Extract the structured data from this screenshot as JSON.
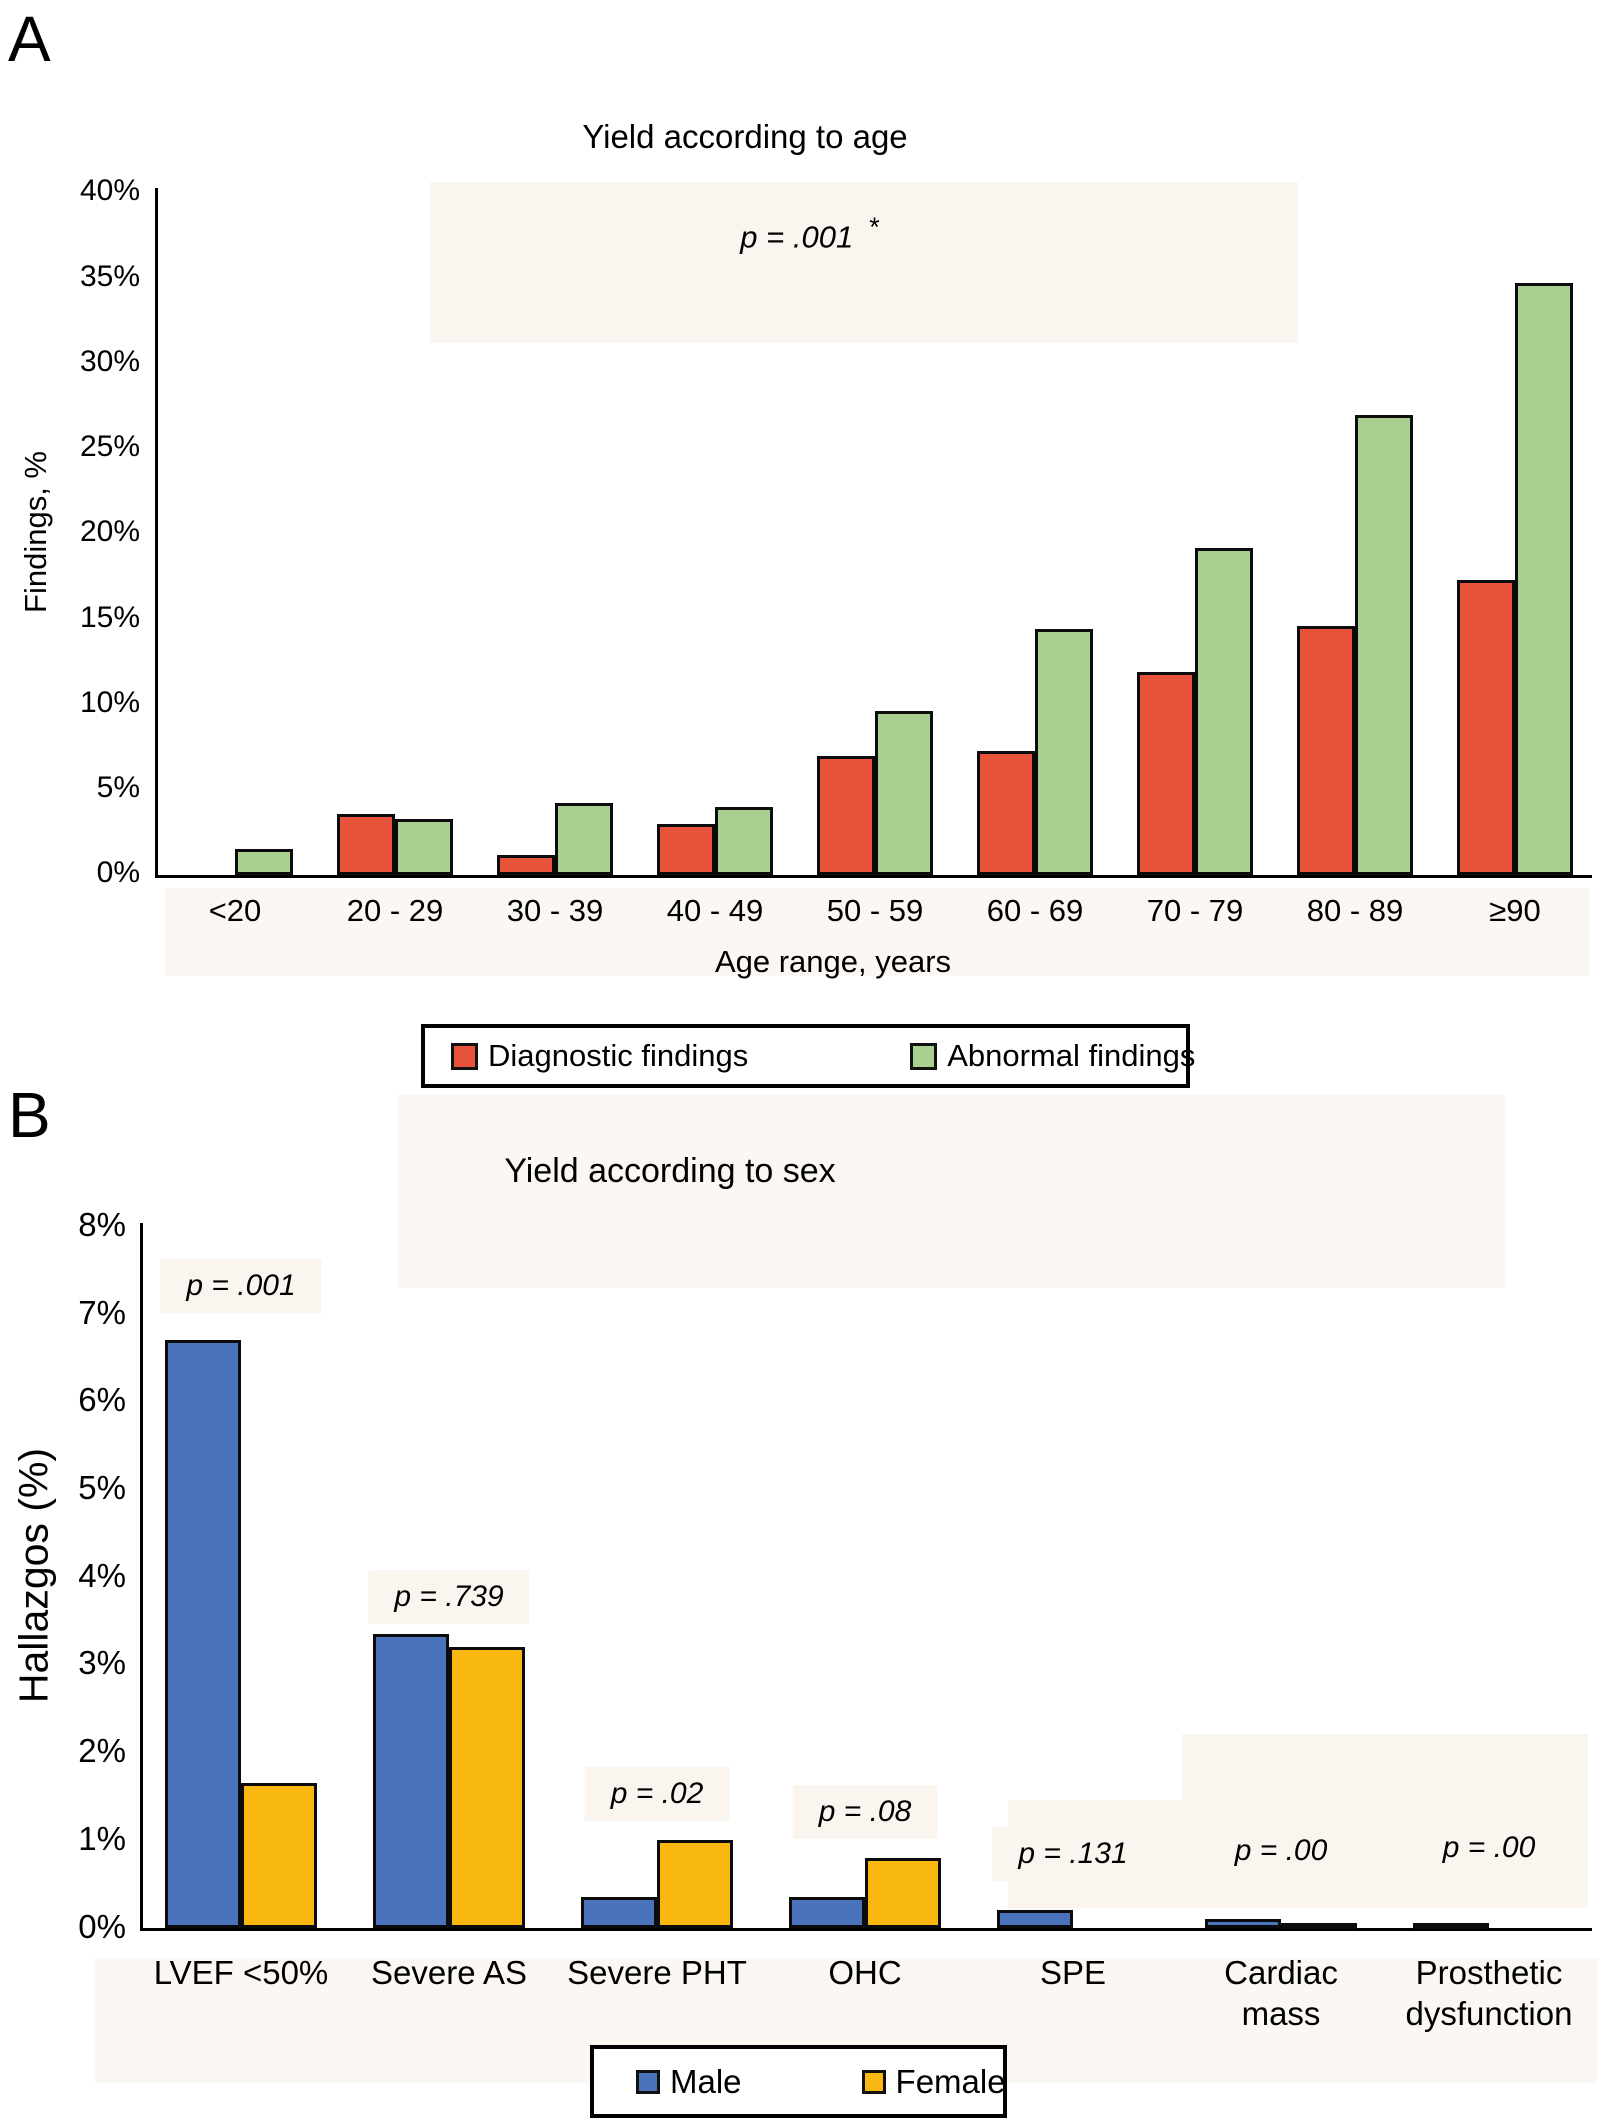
{
  "panels": [
    {
      "label": "A",
      "title": "Yield according to age",
      "p_label": "p = .001",
      "p_asterisk": "*",
      "ylabel": "Findings, %",
      "xlabel": "Age range, years",
      "legend": [
        {
          "label": "Diagnostic findings",
          "color": "#e8513a"
        },
        {
          "label": "Abnormal findings",
          "color": "#a9d08e"
        }
      ]
    },
    {
      "label": "B",
      "title": "Yield according to sex",
      "ylabel": "Hallazgos (%)",
      "legend": [
        {
          "label": "Male",
          "color": "#4a73b9"
        },
        {
          "label": "Female",
          "color": "#f9b711"
        }
      ]
    }
  ],
  "chart_data": [
    {
      "type": "bar",
      "title": "Yield according to age",
      "xlabel": "Age range, years",
      "ylabel": "Findings, %",
      "ylim": [
        0,
        40
      ],
      "ytick_step": 5,
      "ytick_suffix": "%",
      "grid": false,
      "legend_position": "bottom",
      "annotation": "p = .001 *",
      "categories": [
        "<20",
        "20 - 29",
        "30 - 39",
        "40 - 49",
        "50 - 59",
        "60 - 69",
        "70 - 79",
        "80 - 89",
        "≥90"
      ],
      "series": [
        {
          "name": "Diagnostic findings",
          "color": "#e8513a",
          "values": [
            0,
            3.6,
            1.2,
            3.0,
            7.0,
            7.3,
            11.9,
            14.6,
            17.3
          ]
        },
        {
          "name": "Abnormal findings",
          "color": "#a9d08e",
          "values": [
            1.5,
            3.3,
            4.2,
            4.0,
            9.6,
            14.4,
            19.2,
            27.0,
            34.7
          ]
        }
      ]
    },
    {
      "type": "bar",
      "title": "Yield according to sex",
      "xlabel": "",
      "ylabel": "Hallazgos (%)",
      "ylim": [
        0,
        8
      ],
      "ytick_step": 1,
      "ytick_suffix": "%",
      "grid": false,
      "legend_position": "bottom",
      "categories": [
        "LVEF <50%",
        "Severe AS",
        "Severe PHT",
        "OHC",
        "SPE",
        "Cardiac\nmass",
        "Prosthetic\ndysfunction"
      ],
      "p_values": [
        "p = .001",
        "p = .739",
        "p = .02",
        "p = .08",
        "p = .131",
        "p = .00",
        "p = .00"
      ],
      "series": [
        {
          "name": "Male",
          "color": "#4a73b9",
          "values": [
            6.7,
            3.35,
            0.35,
            0.35,
            0.2,
            0.1,
            0.06
          ]
        },
        {
          "name": "Female",
          "color": "#f9b711",
          "values": [
            1.65,
            3.2,
            1.0,
            0.8,
            0,
            0.06,
            0
          ]
        }
      ]
    }
  ]
}
